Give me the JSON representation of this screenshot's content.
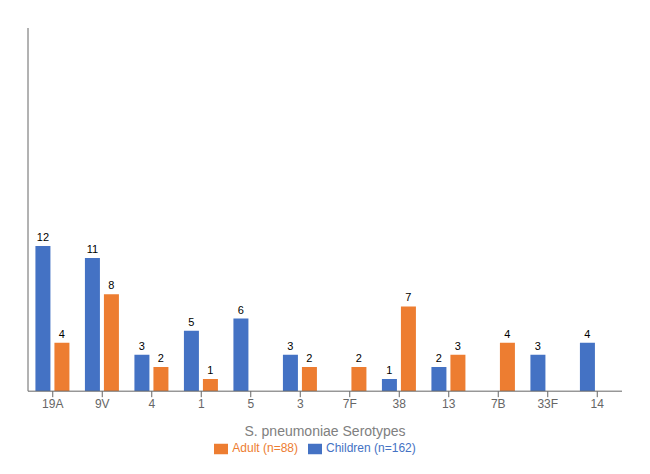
{
  "chart_data": {
    "type": "bar",
    "xlabel": "S. pneumoniae Serotypes",
    "categories": [
      "19A",
      "9V",
      "4",
      "1",
      "5",
      "3",
      "7F",
      "38",
      "13",
      "7B",
      "33F",
      "14"
    ],
    "series": [
      {
        "name": "Children (n=162)",
        "color": "#4472C4",
        "values": [
          12,
          11,
          3,
          5,
          6,
          3,
          0,
          1,
          2,
          0,
          3,
          4
        ]
      },
      {
        "name": "Adult (n=88)",
        "color": "#ED7D31",
        "values": [
          4,
          8,
          2,
          1,
          0,
          2,
          2,
          7,
          3,
          4,
          0,
          0
        ]
      }
    ],
    "ylim": [
      0,
      30
    ],
    "grid": false,
    "legend": "bottom",
    "data_labels": true,
    "tick_labels": "x"
  }
}
